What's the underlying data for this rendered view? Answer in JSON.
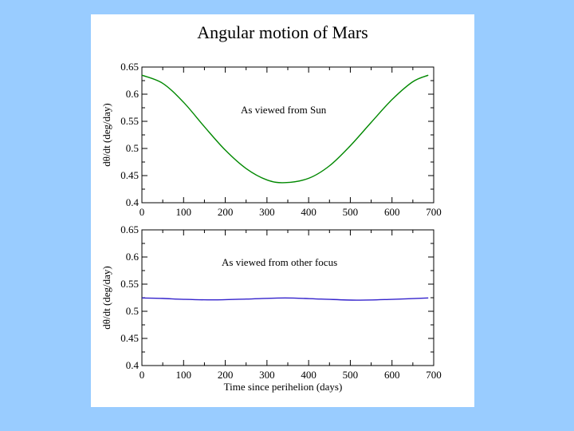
{
  "title": "Angular motion of Mars",
  "chart_data": [
    {
      "type": "line",
      "name": "sun",
      "annotation": "As viewed from Sun",
      "ylabel": "dθ/dt (deg/day)",
      "xlabel": "",
      "xlim": [
        0,
        700
      ],
      "ylim": [
        0.4,
        0.65
      ],
      "xticks": [
        0,
        100,
        200,
        300,
        400,
        500,
        600,
        700
      ],
      "xtick_labels": [
        "0",
        "100",
        "200",
        "300",
        "400",
        "500",
        "600",
        "700"
      ],
      "yticks": [
        0.4,
        0.45,
        0.5,
        0.55,
        0.6,
        0.65
      ],
      "ytick_labels": [
        "0.4",
        "0.45",
        "0.5",
        "0.55",
        "0.6",
        "0.65"
      ],
      "series": [
        {
          "name": "As viewed from Sun",
          "color": "#008800",
          "x": [
            0,
            50,
            100,
            150,
            200,
            250,
            300,
            343,
            400,
            450,
            500,
            550,
            600,
            650,
            687
          ],
          "y": [
            0.635,
            0.62,
            0.585,
            0.54,
            0.497,
            0.463,
            0.442,
            0.437,
            0.445,
            0.468,
            0.505,
            0.548,
            0.59,
            0.623,
            0.635
          ]
        }
      ]
    },
    {
      "type": "line",
      "name": "focus",
      "annotation": "As viewed from other focus",
      "ylabel": "dθ/dt (deg/day)",
      "xlabel": "Time since perihelion (days)",
      "xlim": [
        0,
        700
      ],
      "ylim": [
        0.4,
        0.65
      ],
      "xticks": [
        0,
        100,
        200,
        300,
        400,
        500,
        600,
        700
      ],
      "xtick_labels": [
        "0",
        "100",
        "200",
        "300",
        "400",
        "500",
        "600",
        "700"
      ],
      "yticks": [
        0.4,
        0.45,
        0.5,
        0.55,
        0.6,
        0.65
      ],
      "ytick_labels": [
        "0.4",
        "0.45",
        "0.5",
        "0.55",
        "0.6",
        "0.65"
      ],
      "series": [
        {
          "name": "As viewed from other focus",
          "color": "#3322cc",
          "x": [
            0,
            50,
            100,
            172,
            250,
            343,
            430,
            515,
            600,
            687
          ],
          "y": [
            0.5245,
            0.5237,
            0.522,
            0.521,
            0.5225,
            0.5245,
            0.5225,
            0.5205,
            0.522,
            0.5245
          ]
        }
      ]
    }
  ]
}
